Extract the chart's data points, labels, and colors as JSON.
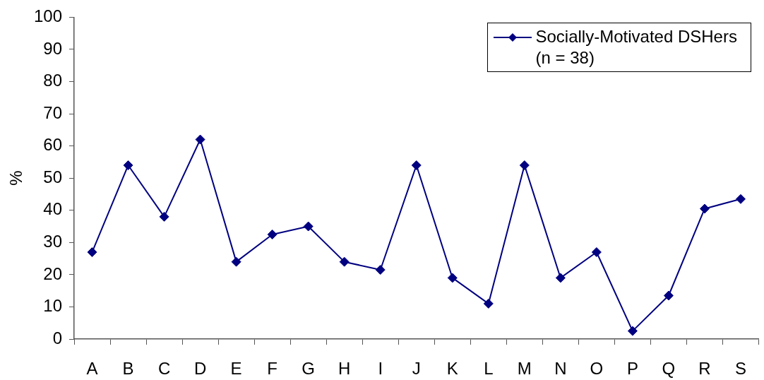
{
  "chart_data": {
    "type": "line",
    "ylabel": "%",
    "categories": [
      "A",
      "B",
      "C",
      "D",
      "E",
      "F",
      "G",
      "H",
      "I",
      "J",
      "K",
      "L",
      "M",
      "N",
      "O",
      "P",
      "Q",
      "R",
      "S"
    ],
    "series": [
      {
        "name": "Socially-Motivated DSHers (n = 38)",
        "color": "#000080",
        "values": [
          27,
          54,
          38,
          62,
          24,
          32.5,
          35,
          24,
          21.5,
          54,
          19,
          11,
          54,
          19,
          27,
          2.5,
          13.5,
          40.5,
          43.5
        ]
      }
    ],
    "ylim": [
      0,
      100
    ],
    "yticks": [
      0,
      10,
      20,
      30,
      40,
      50,
      60,
      70,
      80,
      90,
      100
    ],
    "legend": "top right",
    "marker": "diamond",
    "line_style": "solid"
  }
}
